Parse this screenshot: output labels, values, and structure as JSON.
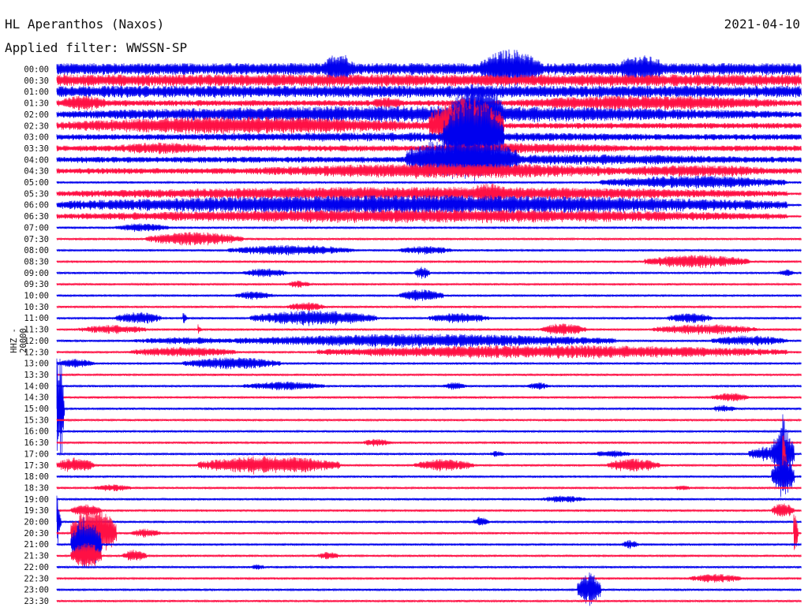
{
  "header": {
    "title": "HL Aperanthos (Naxos)",
    "filter": "Applied filter: WWSSN-SP",
    "date": "2021-04-10"
  },
  "chart_data": {
    "type": "line",
    "title": "HL Aperanthos (Naxos)",
    "subtitle": "Applied filter: WWSSN-SP",
    "date": "2021-04-10",
    "ylabel": "HHZ - 20000",
    "xlabel": "",
    "trace_colors": [
      "#0000ee",
      "#ff1044"
    ],
    "row_labels": [
      "00:00",
      "00:30",
      "01:00",
      "01:30",
      "02:00",
      "02:30",
      "03:00",
      "03:30",
      "04:00",
      "04:30",
      "05:00",
      "05:30",
      "06:00",
      "06:30",
      "07:00",
      "07:30",
      "08:00",
      "08:30",
      "09:00",
      "09:30",
      "10:00",
      "10:30",
      "11:00",
      "11:30",
      "12:00",
      "12:30",
      "13:00",
      "13:30",
      "14:00",
      "14:30",
      "15:00",
      "15:30",
      "16:00",
      "16:30",
      "17:00",
      "17:30",
      "18:00",
      "18:30",
      "19:00",
      "19:30",
      "20:00",
      "20:30",
      "21:00",
      "21:30",
      "22:00",
      "22:30",
      "23:00",
      "23:30"
    ],
    "bursts": [
      [
        0,
        0.36,
        0.4,
        22
      ],
      [
        0,
        0.57,
        0.65,
        26
      ],
      [
        0,
        0.75,
        0.82,
        18
      ],
      [
        3,
        0.0,
        0.07,
        10
      ],
      [
        3,
        0.42,
        0.47,
        8
      ],
      [
        3,
        0.6,
        0.98,
        10
      ],
      [
        4,
        0.0,
        0.98,
        11
      ],
      [
        4,
        0.53,
        0.6,
        40
      ],
      [
        5,
        0.0,
        0.5,
        12
      ],
      [
        5,
        0.5,
        0.6,
        38
      ],
      [
        6,
        0.0,
        0.98,
        6
      ],
      [
        6,
        0.52,
        0.6,
        52
      ],
      [
        7,
        0.07,
        0.21,
        8
      ],
      [
        7,
        0.45,
        0.8,
        7
      ],
      [
        8,
        0.45,
        0.98,
        7
      ],
      [
        8,
        0.47,
        0.62,
        30
      ],
      [
        9,
        0.25,
        0.8,
        10
      ],
      [
        9,
        0.73,
        0.98,
        8
      ],
      [
        10,
        0.73,
        0.98,
        9
      ],
      [
        11,
        0.0,
        0.98,
        9
      ],
      [
        11,
        0.55,
        0.61,
        14
      ],
      [
        12,
        0.0,
        0.98,
        13
      ],
      [
        13,
        0.0,
        0.98,
        9
      ],
      [
        14,
        0.08,
        0.15,
        6
      ],
      [
        15,
        0.12,
        0.25,
        9
      ],
      [
        16,
        0.23,
        0.4,
        7
      ],
      [
        16,
        0.46,
        0.53,
        6
      ],
      [
        17,
        0.79,
        0.93,
        9
      ],
      [
        18,
        0.25,
        0.31,
        6
      ],
      [
        18,
        0.48,
        0.5,
        8
      ],
      [
        18,
        0.97,
        0.99,
        5
      ],
      [
        19,
        0.31,
        0.34,
        5
      ],
      [
        20,
        0.24,
        0.29,
        6
      ],
      [
        20,
        0.46,
        0.52,
        8
      ],
      [
        21,
        0.31,
        0.36,
        6
      ],
      [
        22,
        0.08,
        0.14,
        8
      ],
      [
        22,
        0.26,
        0.43,
        10
      ],
      [
        22,
        0.5,
        0.58,
        7
      ],
      [
        22,
        0.82,
        0.88,
        7
      ],
      [
        23,
        0.03,
        0.12,
        6
      ],
      [
        23,
        0.65,
        0.71,
        8
      ],
      [
        23,
        0.8,
        0.94,
        7
      ],
      [
        24,
        0.1,
        0.25,
        5
      ],
      [
        24,
        0.24,
        0.75,
        9
      ],
      [
        24,
        0.88,
        0.98,
        7
      ],
      [
        25,
        0.1,
        0.24,
        7
      ],
      [
        25,
        0.35,
        0.98,
        9
      ],
      [
        26,
        0.0,
        0.05,
        6
      ],
      [
        26,
        0.17,
        0.3,
        8
      ],
      [
        28,
        0.25,
        0.36,
        6
      ],
      [
        28,
        0.52,
        0.55,
        5
      ],
      [
        28,
        0.63,
        0.66,
        5
      ],
      [
        29,
        0.88,
        0.93,
        6
      ],
      [
        30,
        0.88,
        0.91,
        5
      ],
      [
        33,
        0.41,
        0.45,
        5
      ],
      [
        34,
        0.58,
        0.6,
        4
      ],
      [
        34,
        0.72,
        0.77,
        5
      ],
      [
        34,
        0.93,
        0.98,
        10
      ],
      [
        34,
        0.96,
        0.99,
        34
      ],
      [
        35,
        0.0,
        0.05,
        10
      ],
      [
        35,
        0.19,
        0.38,
        12
      ],
      [
        35,
        0.48,
        0.56,
        8
      ],
      [
        35,
        0.74,
        0.81,
        9
      ],
      [
        36,
        0.96,
        0.99,
        28
      ],
      [
        37,
        0.05,
        0.1,
        5
      ],
      [
        37,
        0.83,
        0.85,
        4
      ],
      [
        38,
        0.65,
        0.71,
        5
      ],
      [
        39,
        0.02,
        0.06,
        8
      ],
      [
        39,
        0.96,
        0.99,
        10
      ],
      [
        40,
        0.56,
        0.58,
        7
      ],
      [
        41,
        0.02,
        0.08,
        34
      ],
      [
        41,
        0.1,
        0.14,
        6
      ],
      [
        42,
        0.02,
        0.06,
        36
      ],
      [
        42,
        0.76,
        0.78,
        6
      ],
      [
        43,
        0.02,
        0.06,
        18
      ],
      [
        43,
        0.09,
        0.12,
        8
      ],
      [
        43,
        0.35,
        0.38,
        5
      ],
      [
        44,
        0.26,
        0.28,
        4
      ],
      [
        45,
        0.85,
        0.92,
        6
      ],
      [
        46,
        0.7,
        0.73,
        22
      ]
    ],
    "spikes": [
      [
        30,
        0.0,
        80
      ],
      [
        30,
        0.005,
        90
      ],
      [
        40,
        0.0,
        40
      ],
      [
        34,
        0.975,
        70
      ],
      [
        35,
        0.975,
        50
      ],
      [
        41,
        0.99,
        40
      ],
      [
        22,
        0.17,
        10
      ],
      [
        23,
        0.19,
        8
      ]
    ]
  }
}
